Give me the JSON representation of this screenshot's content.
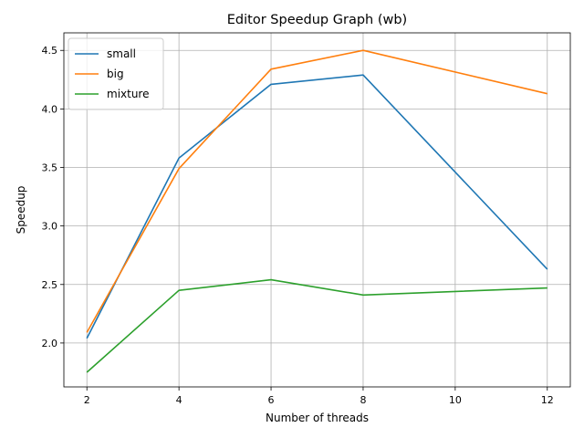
{
  "chart_data": {
    "type": "line",
    "title": "Editor Speedup Graph (wb)",
    "xlabel": "Number of threads",
    "ylabel": "Speedup",
    "x": [
      2,
      4,
      6,
      8,
      12
    ],
    "xlim": [
      1.5,
      12.5
    ],
    "ylim": [
      1.625,
      4.65
    ],
    "xticks": [
      2,
      4,
      6,
      8,
      10,
      12
    ],
    "xtick_labels": [
      "2",
      "4",
      "6",
      "8",
      "10",
      "12"
    ],
    "yticks": [
      2.0,
      2.5,
      3.0,
      3.5,
      4.0,
      4.5
    ],
    "ytick_labels": [
      "2.0",
      "2.5",
      "3.0",
      "3.5",
      "4.0",
      "4.5"
    ],
    "grid": true,
    "legend_position": "upper-left",
    "series": [
      {
        "name": "small",
        "color": "#1f77b4",
        "values": [
          2.04,
          3.58,
          4.21,
          4.29,
          2.63
        ]
      },
      {
        "name": "big",
        "color": "#ff7f0e",
        "values": [
          2.09,
          3.49,
          4.34,
          4.5,
          4.13
        ]
      },
      {
        "name": "mixture",
        "color": "#2ca02c",
        "values": [
          1.75,
          2.45,
          2.54,
          2.41,
          2.47
        ]
      }
    ]
  }
}
